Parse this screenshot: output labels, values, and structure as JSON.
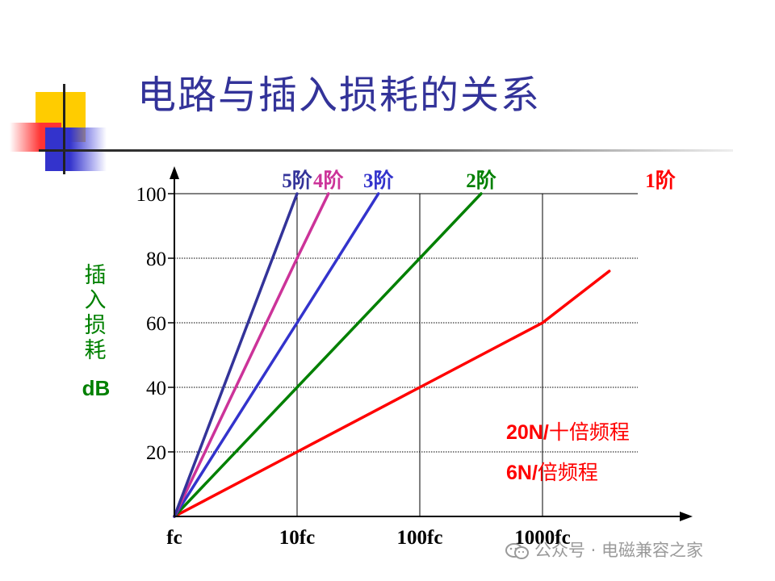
{
  "slide": {
    "title": "电路与插入损耗的关系",
    "ylabel": "插入损耗",
    "ylabel_unit": "dB",
    "note_line1_bold": "20N/",
    "note_line1_text": "十倍频程",
    "note_line2_bold": "6N/",
    "note_line2_text": "倍频程",
    "watermark": "公众号 · 电磁兼容之家",
    "colors": {
      "title": "#333399",
      "ylabel": "#008000",
      "note": "#ff0000",
      "axis": "#000000"
    }
  },
  "chart_data": {
    "type": "line",
    "x_scale": "log",
    "xlabel": "",
    "ylabel": "插入损耗 dB",
    "x_ticks": [
      {
        "value": 1,
        "label": "fc"
      },
      {
        "value": 10,
        "label": "10fc"
      },
      {
        "value": 100,
        "label": "100fc"
      },
      {
        "value": 1000,
        "label": "1000fc"
      }
    ],
    "y_ticks": [
      20,
      40,
      60,
      80,
      100
    ],
    "xlim": [
      1,
      10000
    ],
    "ylim": [
      0,
      100
    ],
    "grid": true,
    "series": [
      {
        "name": "1阶",
        "color": "#ff0000",
        "x": [
          1,
          10,
          100,
          1000,
          3500
        ],
        "y": [
          0,
          20,
          40,
          60,
          76
        ]
      },
      {
        "name": "2阶",
        "color": "#008000",
        "x": [
          1,
          10,
          100,
          316
        ],
        "y": [
          0,
          40,
          80,
          100
        ]
      },
      {
        "name": "3阶",
        "color": "#3333cc",
        "x": [
          1,
          10,
          46
        ],
        "y": [
          0,
          60,
          100
        ]
      },
      {
        "name": "4阶",
        "color": "#cc3399",
        "x": [
          1,
          10,
          18
        ],
        "y": [
          0,
          80,
          100
        ]
      },
      {
        "name": "5阶",
        "color": "#333399",
        "x": [
          1,
          10
        ],
        "y": [
          0,
          100
        ]
      }
    ]
  }
}
